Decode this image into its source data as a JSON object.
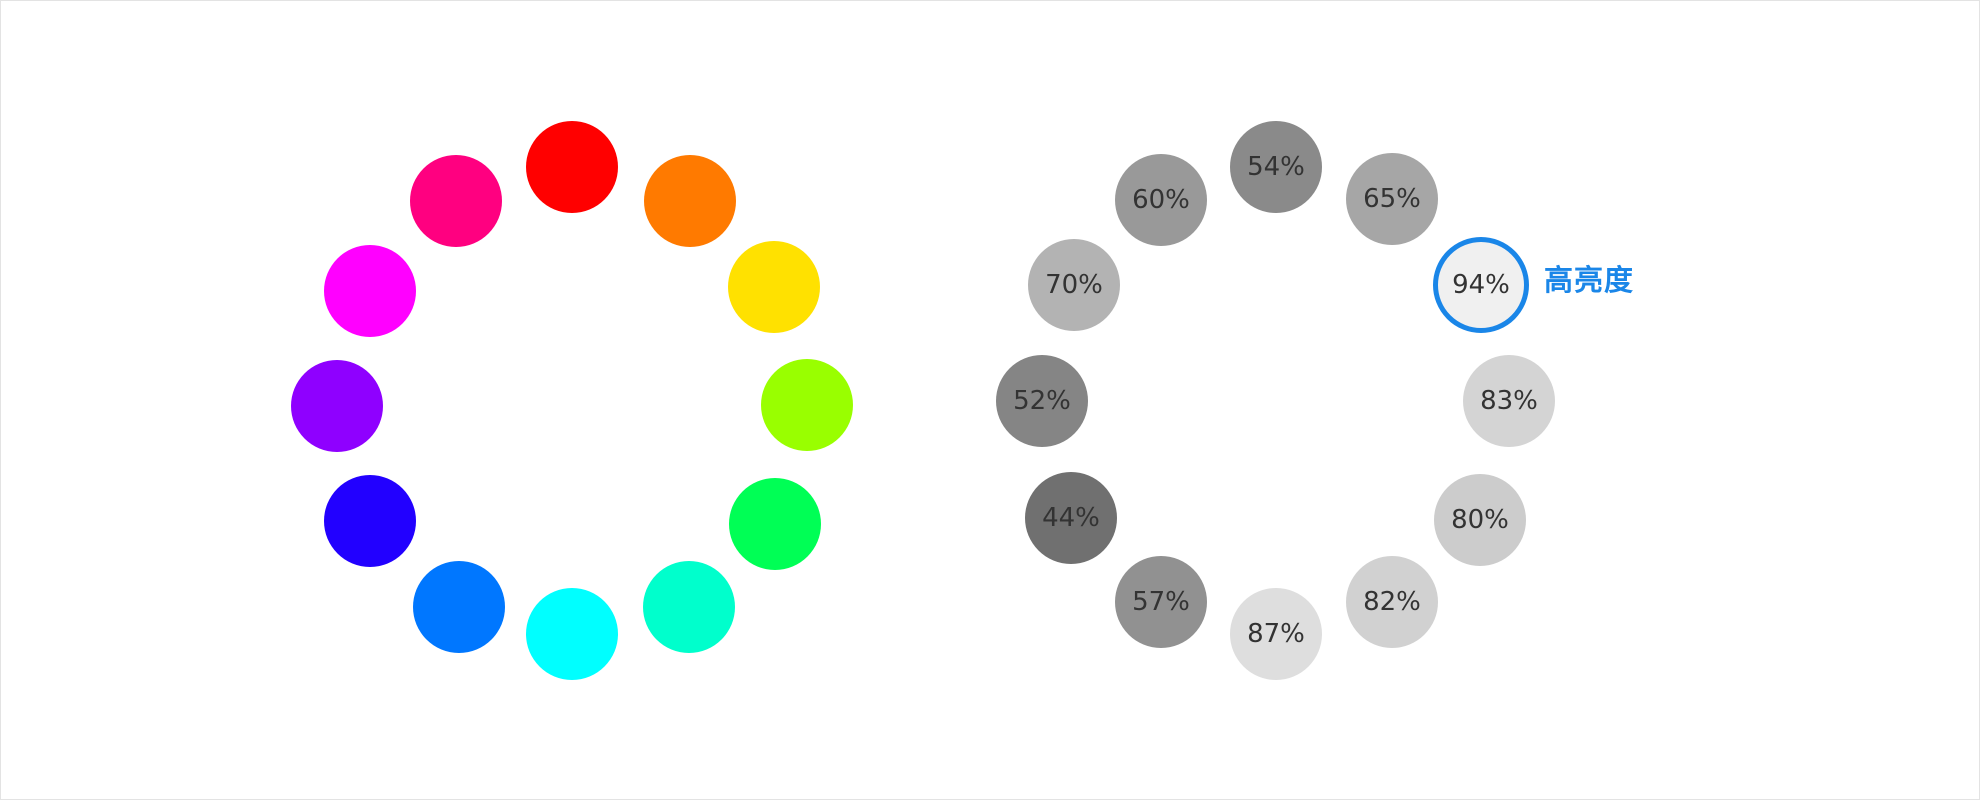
{
  "hue_wheel": {
    "swatches": [
      {
        "name": "red",
        "color": "#ff0000"
      },
      {
        "name": "orange",
        "color": "#ff7a00"
      },
      {
        "name": "yellow",
        "color": "#ffe100"
      },
      {
        "name": "lime",
        "color": "#99ff00"
      },
      {
        "name": "green",
        "color": "#00ff55"
      },
      {
        "name": "aquamarine",
        "color": "#00ffcc"
      },
      {
        "name": "cyan",
        "color": "#00ffff"
      },
      {
        "name": "azure",
        "color": "#0077ff"
      },
      {
        "name": "blue",
        "color": "#2200ff"
      },
      {
        "name": "violet",
        "color": "#8f00ff"
      },
      {
        "name": "magenta",
        "color": "#ff00ff"
      },
      {
        "name": "rose",
        "color": "#ff0080"
      }
    ]
  },
  "brightness_wheel": {
    "swatches": [
      {
        "label": "54%",
        "color": "#8a8a8a"
      },
      {
        "label": "65%",
        "color": "#a6a6a6"
      },
      {
        "label": "94%",
        "color": "#f0f0f0",
        "selected": true
      },
      {
        "label": "83%",
        "color": "#d4d4d4"
      },
      {
        "label": "80%",
        "color": "#cccccc"
      },
      {
        "label": "82%",
        "color": "#d1d1d1"
      },
      {
        "label": "87%",
        "color": "#dedede"
      },
      {
        "label": "57%",
        "color": "#919191"
      },
      {
        "label": "44%",
        "color": "#707070"
      },
      {
        "label": "52%",
        "color": "#858585"
      },
      {
        "label": "70%",
        "color": "#b3b3b3"
      },
      {
        "label": "60%",
        "color": "#999999"
      }
    ],
    "callout_label": "高亮度",
    "accent_color": "#1a86e8"
  }
}
